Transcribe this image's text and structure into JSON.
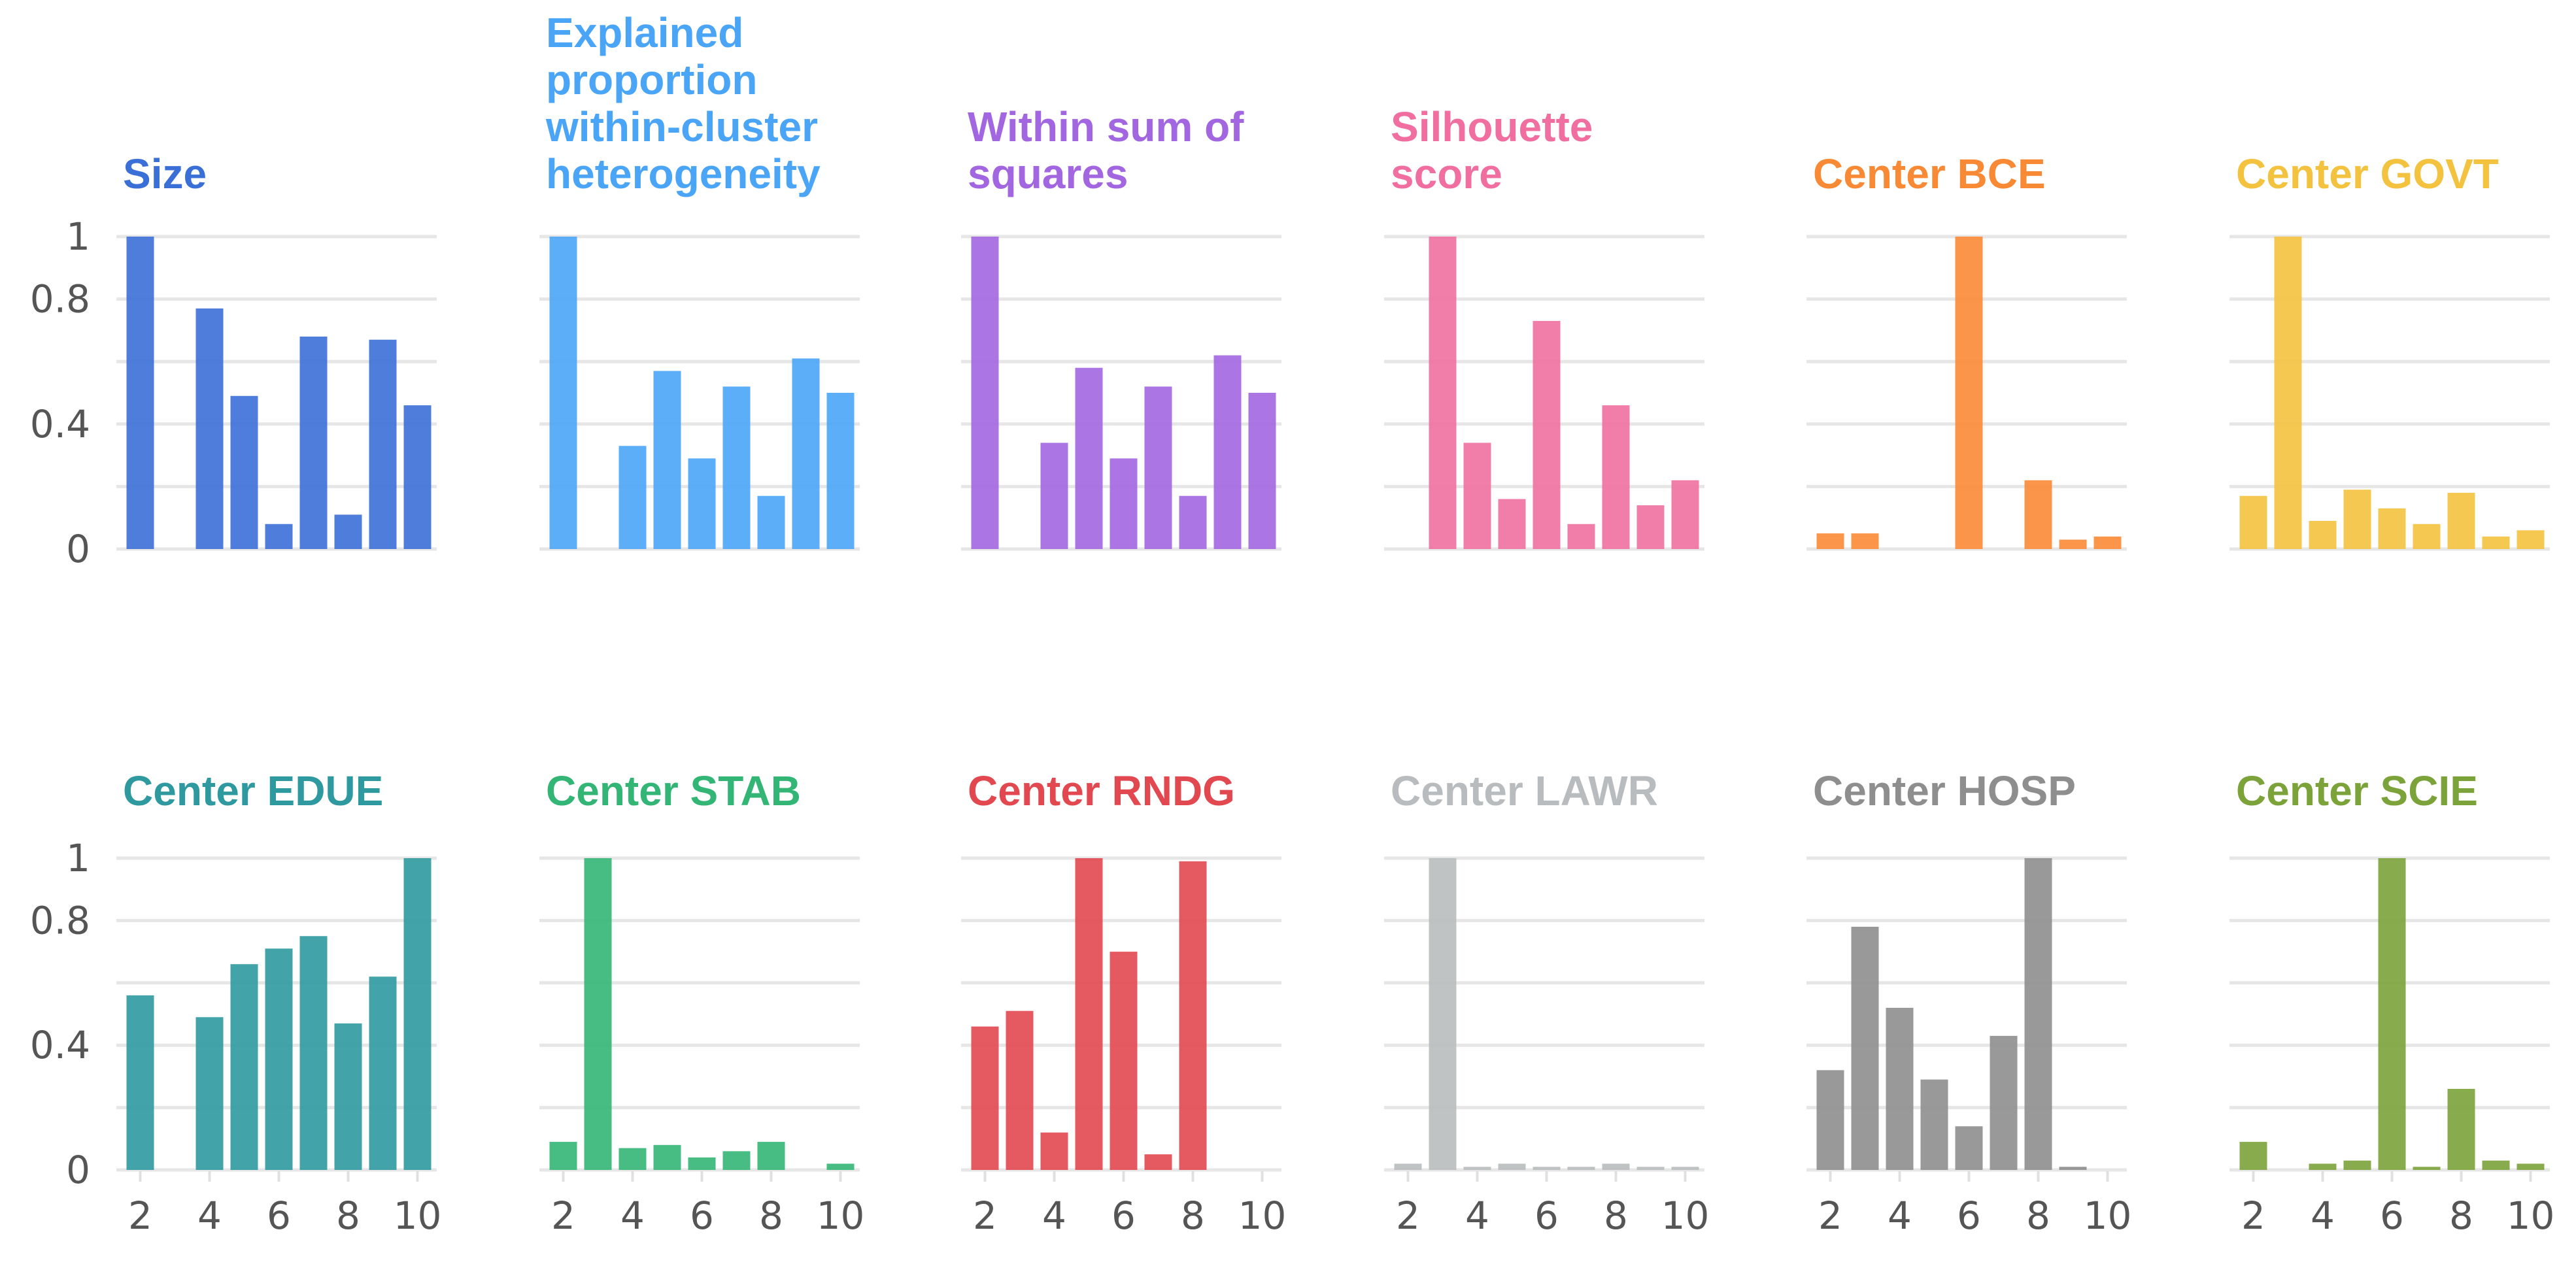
{
  "chart_data": [
    {
      "type": "bar",
      "title": "Size",
      "color": "#3b6fd8",
      "x": [
        2,
        3,
        4,
        5,
        6,
        7,
        8,
        9,
        10
      ],
      "values": [
        1.0,
        0.0,
        0.77,
        0.49,
        0.08,
        0.68,
        0.11,
        0.67,
        0.46
      ],
      "ylim": [
        0,
        1
      ],
      "yticks": [
        0,
        0.4,
        0.8,
        1
      ],
      "ytick_labels": [
        "0",
        "0.4",
        "0.8",
        "1"
      ],
      "xticks": [
        2,
        4,
        6,
        8,
        10
      ],
      "xtick_labels": [
        "2",
        "4",
        "6",
        "8",
        "10"
      ],
      "xlabel": "",
      "ylabel": ""
    },
    {
      "type": "bar",
      "title": "Explained proportion within-cluster heterogeneity",
      "title_lines": [
        "Explained",
        "proportion",
        "within-cluster",
        "heterogeneity"
      ],
      "color": "#4aa5f7",
      "x": [
        2,
        3,
        4,
        5,
        6,
        7,
        8,
        9,
        10
      ],
      "values": [
        1.0,
        0.0,
        0.33,
        0.57,
        0.29,
        0.52,
        0.17,
        0.61,
        0.5
      ],
      "ylim": [
        0,
        1
      ],
      "xlabel": "",
      "ylabel": ""
    },
    {
      "type": "bar",
      "title": "Within sum of squares",
      "title_lines": [
        "Within sum of",
        "squares"
      ],
      "color": "#a267e0",
      "x": [
        2,
        3,
        4,
        5,
        6,
        7,
        8,
        9,
        10
      ],
      "values": [
        1.0,
        0.0,
        0.34,
        0.58,
        0.29,
        0.52,
        0.17,
        0.62,
        0.5
      ],
      "ylim": [
        0,
        1
      ],
      "xlabel": "",
      "ylabel": ""
    },
    {
      "type": "bar",
      "title": "Silhouette score",
      "title_lines": [
        "Silhouette",
        "score"
      ],
      "color": "#f06fa0",
      "x": [
        2,
        3,
        4,
        5,
        6,
        7,
        8,
        9,
        10
      ],
      "values": [
        0.0,
        1.0,
        0.34,
        0.16,
        0.73,
        0.08,
        0.46,
        0.14,
        0.22
      ],
      "ylim": [
        0,
        1
      ],
      "xlabel": "",
      "ylabel": ""
    },
    {
      "type": "bar",
      "title": "Center BCE",
      "color": "#f98a35",
      "x": [
        2,
        3,
        4,
        5,
        6,
        7,
        8,
        9,
        10
      ],
      "values": [
        0.05,
        0.05,
        0.0,
        0.0,
        1.0,
        0.0,
        0.22,
        0.03,
        0.04
      ],
      "ylim": [
        0,
        1
      ],
      "xlabel": "",
      "ylabel": ""
    },
    {
      "type": "bar",
      "title": "Center GOVT",
      "color": "#f3c23e",
      "x": [
        2,
        3,
        4,
        5,
        6,
        7,
        8,
        9,
        10
      ],
      "values": [
        0.17,
        1.0,
        0.09,
        0.19,
        0.13,
        0.08,
        0.18,
        0.04,
        0.06
      ],
      "ylim": [
        0,
        1
      ],
      "xlabel": "",
      "ylabel": ""
    },
    {
      "type": "bar",
      "title": "Center EDUE",
      "color": "#2e9aa0",
      "x": [
        2,
        3,
        4,
        5,
        6,
        7,
        8,
        9,
        10
      ],
      "values": [
        0.56,
        0.0,
        0.49,
        0.66,
        0.71,
        0.75,
        0.47,
        0.62,
        1.0
      ],
      "ylim": [
        0,
        1
      ],
      "xlabel": "",
      "ylabel": ""
    },
    {
      "type": "bar",
      "title": "Center STAB",
      "color": "#33b576",
      "x": [
        2,
        3,
        4,
        5,
        6,
        7,
        8,
        9,
        10
      ],
      "values": [
        0.09,
        1.0,
        0.07,
        0.08,
        0.04,
        0.06,
        0.09,
        0.0,
        0.02
      ],
      "ylim": [
        0,
        1
      ],
      "xlabel": "",
      "ylabel": ""
    },
    {
      "type": "bar",
      "title": "Center RNDG",
      "color": "#e2484f",
      "x": [
        2,
        3,
        4,
        5,
        6,
        7,
        8,
        9,
        10
      ],
      "values": [
        0.46,
        0.51,
        0.12,
        1.0,
        0.7,
        0.05,
        0.99,
        0.0,
        0.0
      ],
      "ylim": [
        0,
        1
      ],
      "xlabel": "",
      "ylabel": ""
    },
    {
      "type": "bar",
      "title": "Center LAWR",
      "color": "#b8bcbe",
      "x": [
        2,
        3,
        4,
        5,
        6,
        7,
        8,
        9,
        10
      ],
      "values": [
        0.02,
        1.0,
        0.01,
        0.02,
        0.01,
        0.01,
        0.02,
        0.01,
        0.01
      ],
      "ylim": [
        0,
        1
      ],
      "xlabel": "",
      "ylabel": ""
    },
    {
      "type": "bar",
      "title": "Center HOSP",
      "color": "#8e8e8e",
      "x": [
        2,
        3,
        4,
        5,
        6,
        7,
        8,
        9,
        10
      ],
      "values": [
        0.32,
        0.78,
        0.52,
        0.29,
        0.14,
        0.43,
        1.0,
        0.01,
        0.0
      ],
      "ylim": [
        0,
        1
      ],
      "xlabel": "",
      "ylabel": ""
    },
    {
      "type": "bar",
      "title": "Center SCIE",
      "color": "#7ba33a",
      "x": [
        2,
        3,
        4,
        5,
        6,
        7,
        8,
        9,
        10
      ],
      "values": [
        0.09,
        0.0,
        0.02,
        0.03,
        1.0,
        0.01,
        0.26,
        0.03,
        0.02
      ],
      "ylim": [
        0,
        1
      ],
      "xlabel": "",
      "ylabel": ""
    }
  ]
}
